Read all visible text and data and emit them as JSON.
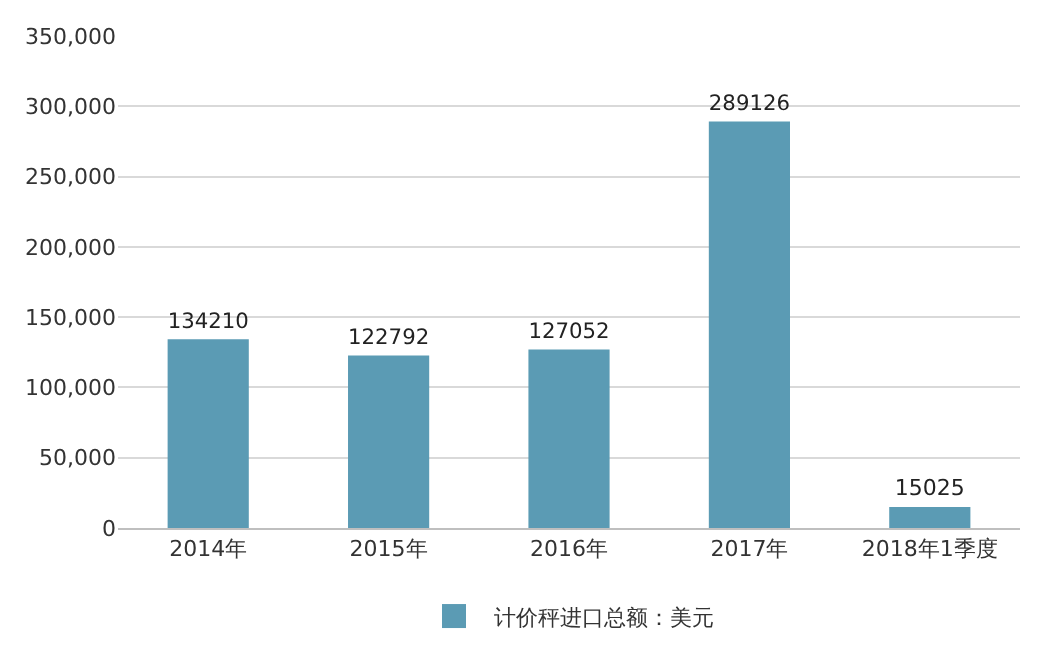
{
  "chart_data": {
    "type": "bar",
    "categories": [
      "2014年",
      "2015年",
      "2016年",
      "2017年",
      "2018年1季度"
    ],
    "series": [
      {
        "name": "计价秤进口总额：美元",
        "color": "#5b9bb4",
        "values": [
          134210,
          122792,
          127052,
          289126,
          15025
        ]
      }
    ],
    "ylim": [
      0,
      350000
    ],
    "yticks": [
      0,
      {
        "value": 50000,
        "label": "50,000"
      },
      {
        "value": 100000,
        "label": "100,000"
      },
      {
        "value": 150000,
        "label": "150,000"
      },
      {
        "value": 200000,
        "label": "200,000"
      },
      {
        "value": 250000,
        "label": "250,000"
      },
      {
        "value": 300000,
        "label": "300,000"
      },
      {
        "value": 350000,
        "label": "350,000"
      }
    ],
    "grid": "y",
    "legend": "bottom",
    "data_labels": true
  }
}
